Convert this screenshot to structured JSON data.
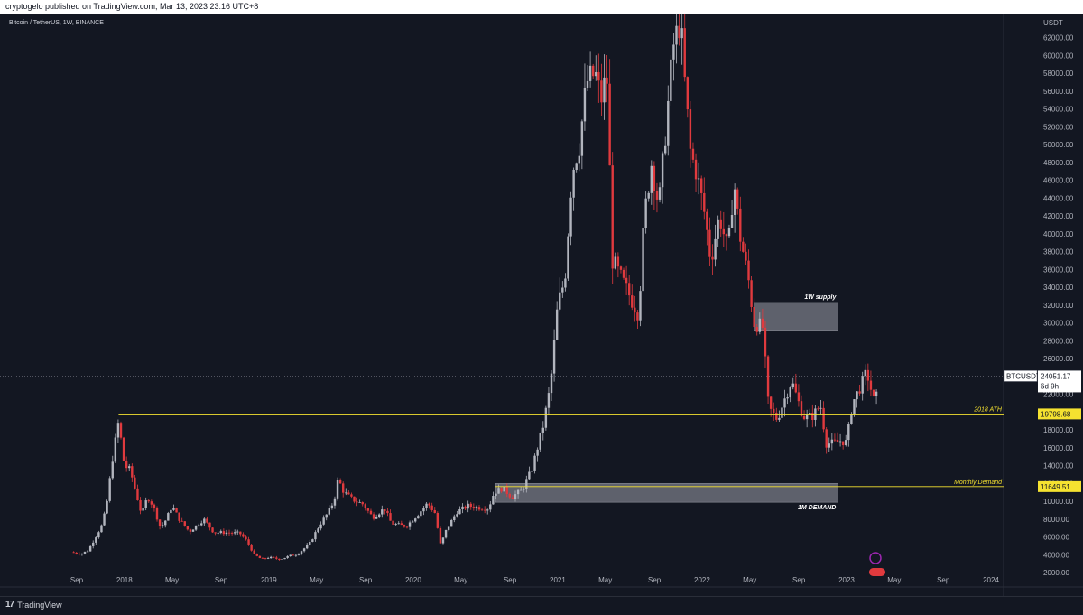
{
  "header": {
    "publisher_line": "cryptogelo published on TradingView.com, Mar 13, 2023 23:16 UTC+8"
  },
  "symbol_line": "Bitcoin / TetherUS, 1W, BINANCE",
  "footer": {
    "brand": "TradingView"
  },
  "colors": {
    "up": "#b2b5be",
    "down": "#e03a3e",
    "background": "#131722",
    "level": "#f5e230",
    "zone": "#787b86"
  },
  "chart_data": {
    "type": "candlestick",
    "symbol": "BTCUSDT",
    "currency": "USDT",
    "ylim": [
      1000,
      64000
    ],
    "y_ticks": [
      "2000.00",
      "4000.00",
      "6000.00",
      "8000.00",
      "10000.00",
      "12000.00",
      "14000.00",
      "16000.00",
      "18000.00",
      "20000.00",
      "22000.00",
      "24000.00",
      "26000.00",
      "28000.00",
      "30000.00",
      "32000.00",
      "34000.00",
      "36000.00",
      "38000.00",
      "40000.00",
      "42000.00",
      "44000.00",
      "46000.00",
      "48000.00",
      "50000.00",
      "52000.00",
      "54000.00",
      "56000.00",
      "58000.00",
      "60000.00",
      "62000.00"
    ],
    "x_ticks": [
      "Sep",
      "2018",
      "May",
      "Sep",
      "2019",
      "May",
      "Sep",
      "2020",
      "May",
      "Sep",
      "2021",
      "May",
      "Sep",
      "2022",
      "May",
      "Sep",
      "2023",
      "May",
      "Sep",
      "2024"
    ],
    "x_tick_dates": [
      2017.67,
      2018.0,
      2018.33,
      2018.67,
      2019.0,
      2019.33,
      2019.67,
      2020.0,
      2020.33,
      2020.67,
      2021.0,
      2021.33,
      2021.67,
      2022.0,
      2022.33,
      2022.67,
      2023.0,
      2023.33,
      2023.67,
      2024.0
    ],
    "path_points": [
      [
        2017.63,
        4300
      ],
      [
        2017.7,
        4100
      ],
      [
        2017.75,
        4500
      ],
      [
        2017.8,
        6000
      ],
      [
        2017.85,
        7500
      ],
      [
        2017.88,
        10000
      ],
      [
        2017.92,
        15000
      ],
      [
        2017.96,
        19000
      ],
      [
        2018.0,
        14000
      ],
      [
        2018.04,
        13500
      ],
      [
        2018.08,
        11000
      ],
      [
        2018.12,
        8500
      ],
      [
        2018.16,
        10500
      ],
      [
        2018.2,
        9500
      ],
      [
        2018.25,
        7000
      ],
      [
        2018.29,
        8000
      ],
      [
        2018.33,
        9500
      ],
      [
        2018.38,
        8000
      ],
      [
        2018.45,
        6600
      ],
      [
        2018.55,
        8000
      ],
      [
        2018.62,
        6500
      ],
      [
        2018.7,
        6500
      ],
      [
        2018.8,
        6400
      ],
      [
        2018.85,
        5500
      ],
      [
        2018.9,
        4000
      ],
      [
        2018.95,
        3500
      ],
      [
        2019.0,
        3700
      ],
      [
        2019.08,
        3500
      ],
      [
        2019.15,
        3900
      ],
      [
        2019.2,
        4100
      ],
      [
        2019.28,
        5200
      ],
      [
        2019.35,
        7300
      ],
      [
        2019.4,
        8500
      ],
      [
        2019.45,
        10000
      ],
      [
        2019.48,
        12500
      ],
      [
        2019.52,
        11000
      ],
      [
        2019.58,
        10200
      ],
      [
        2019.65,
        9700
      ],
      [
        2019.72,
        8200
      ],
      [
        2019.8,
        9200
      ],
      [
        2019.85,
        7500
      ],
      [
        2019.95,
        7200
      ],
      [
        2020.03,
        8500
      ],
      [
        2020.1,
        9800
      ],
      [
        2020.15,
        8700
      ],
      [
        2020.19,
        5000
      ],
      [
        2020.22,
        6500
      ],
      [
        2020.3,
        8800
      ],
      [
        2020.38,
        9500
      ],
      [
        2020.45,
        9300
      ],
      [
        2020.52,
        9200
      ],
      [
        2020.56,
        11000
      ],
      [
        2020.62,
        11500
      ],
      [
        2020.68,
        10500
      ],
      [
        2020.75,
        11200
      ],
      [
        2020.82,
        13500
      ],
      [
        2020.86,
        16000
      ],
      [
        2020.9,
        18500
      ],
      [
        2020.95,
        23000
      ],
      [
        2021.0,
        32000
      ],
      [
        2021.05,
        35000
      ],
      [
        2021.1,
        47000
      ],
      [
        2021.15,
        50000
      ],
      [
        2021.2,
        57000
      ],
      [
        2021.26,
        58000
      ],
      [
        2021.3,
        55000
      ],
      [
        2021.34,
        58000
      ],
      [
        2021.38,
        37000
      ],
      [
        2021.44,
        35000
      ],
      [
        2021.5,
        33000
      ],
      [
        2021.56,
        31000
      ],
      [
        2021.6,
        42000
      ],
      [
        2021.65,
        48000
      ],
      [
        2021.7,
        43000
      ],
      [
        2021.75,
        52000
      ],
      [
        2021.8,
        61000
      ],
      [
        2021.85,
        64000
      ],
      [
        2021.88,
        57000
      ],
      [
        2021.92,
        49000
      ],
      [
        2021.96,
        47000
      ],
      [
        2022.02,
        42000
      ],
      [
        2022.06,
        37000
      ],
      [
        2022.12,
        42000
      ],
      [
        2022.18,
        38000
      ],
      [
        2022.22,
        46000
      ],
      [
        2022.26,
        40000
      ],
      [
        2022.32,
        35000
      ],
      [
        2022.36,
        30000
      ],
      [
        2022.42,
        29500
      ],
      [
        2022.46,
        20500
      ],
      [
        2022.52,
        19200
      ],
      [
        2022.56,
        21000
      ],
      [
        2022.62,
        23500
      ],
      [
        2022.66,
        21500
      ],
      [
        2022.7,
        19500
      ],
      [
        2022.76,
        19500
      ],
      [
        2022.82,
        20800
      ],
      [
        2022.86,
        16500
      ],
      [
        2022.9,
        16500
      ],
      [
        2022.96,
        16800
      ],
      [
        2023.0,
        16600
      ],
      [
        2023.04,
        21000
      ],
      [
        2023.1,
        23000
      ],
      [
        2023.14,
        24500
      ],
      [
        2023.17,
        22500
      ],
      [
        2023.2,
        20500
      ],
      [
        2023.22,
        24051
      ]
    ],
    "zones": [
      {
        "label": "1W supply",
        "x0": 2022.36,
        "x1": 2022.94,
        "y0": 29200,
        "y1": 32300
      },
      {
        "label": "1M DEMAND",
        "x0": 2020.57,
        "x1": 2022.94,
        "y0": 9900,
        "y1": 12000
      }
    ],
    "levels": [
      {
        "label": "2018 ATH",
        "value": 19798.68,
        "value_text": "19798.68",
        "x0": 2017.96
      },
      {
        "label": "Monthly Demand",
        "value": 11649.51,
        "value_text": "11649.51",
        "x0": 2020.57
      }
    ],
    "last_price": {
      "symbol": "BTCUSDT",
      "value": 24051.17,
      "value_text": "24051.17",
      "countdown": "6d 9h"
    }
  }
}
